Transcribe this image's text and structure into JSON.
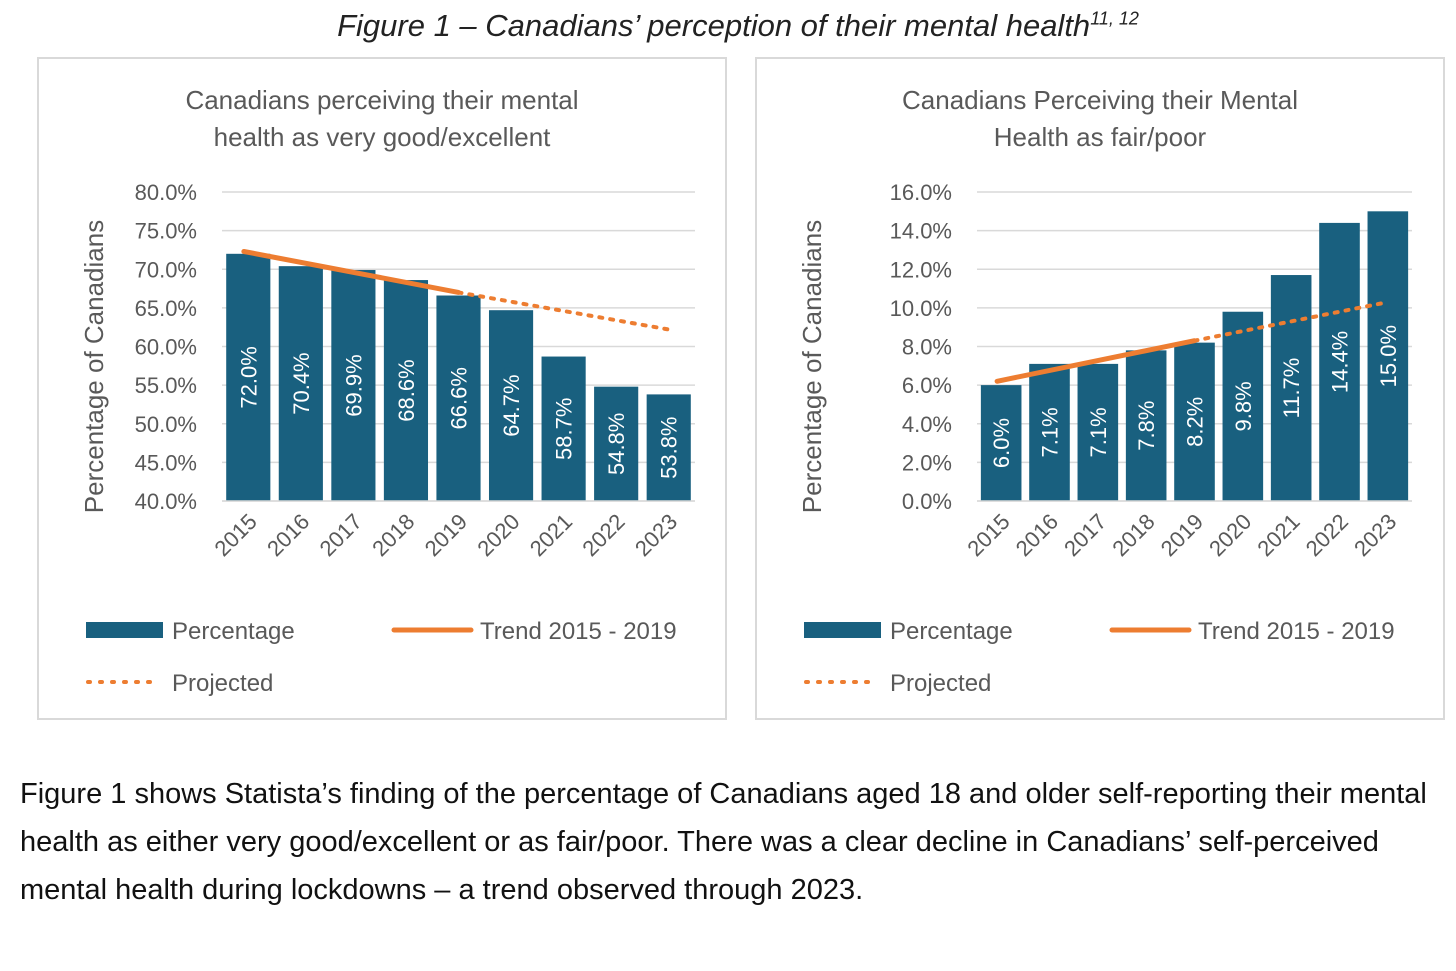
{
  "figure_title": "Figure 1 – Canadians’ perception of their mental health",
  "figure_title_sup": "11, 12",
  "chart_data": [
    {
      "type": "bar",
      "title_line1": "Canadians perceiving their mental",
      "title_line2": "health as very good/excellent",
      "ylabel": "Percentage of Canadians",
      "xlabel": "",
      "categories": [
        "2015",
        "2016",
        "2017",
        "2018",
        "2019",
        "2020",
        "2021",
        "2022",
        "2023"
      ],
      "values": [
        72.0,
        70.4,
        69.9,
        68.6,
        66.6,
        64.7,
        58.7,
        54.8,
        53.8
      ],
      "data_labels": [
        "72.0%",
        "70.4%",
        "69.9%",
        "68.6%",
        "66.6%",
        "64.7%",
        "58.7%",
        "54.8%",
        "53.8%"
      ],
      "ylim": [
        40,
        80
      ],
      "yticks": [
        "40.0%",
        "45.0%",
        "50.0%",
        "55.0%",
        "60.0%",
        "65.0%",
        "70.0%",
        "75.0%",
        "80.0%"
      ],
      "ytick_values": [
        40,
        45,
        50,
        55,
        60,
        65,
        70,
        75,
        80
      ],
      "trend": {
        "x": [
          "2015",
          "2019"
        ],
        "y": [
          72.3,
          67.0
        ]
      },
      "projected": {
        "x": [
          "2019",
          "2023"
        ],
        "y": [
          67.0,
          62.2
        ]
      },
      "legend": [
        "Percentage",
        "Trend 2015 - 2019",
        "Projected"
      ],
      "grid": true
    },
    {
      "type": "bar",
      "title_line1": "Canadians Perceiving their Mental",
      "title_line2": "Health as fair/poor",
      "ylabel": "Percentage of Canadians",
      "xlabel": "",
      "categories": [
        "2015",
        "2016",
        "2017",
        "2018",
        "2019",
        "2020",
        "2021",
        "2022",
        "2023"
      ],
      "values": [
        6.0,
        7.1,
        7.1,
        7.8,
        8.2,
        9.8,
        11.7,
        14.4,
        15.0
      ],
      "data_labels": [
        "6.0%",
        "7.1%",
        "7.1%",
        "7.8%",
        "8.2%",
        "9.8%",
        "11.7%",
        "14.4%",
        "15.0%"
      ],
      "ylim": [
        0,
        16
      ],
      "yticks": [
        "0.0%",
        "2.0%",
        "4.0%",
        "6.0%",
        "8.0%",
        "10.0%",
        "12.0%",
        "14.0%",
        "16.0%"
      ],
      "ytick_values": [
        0,
        2,
        4,
        6,
        8,
        10,
        12,
        14,
        16
      ],
      "trend": {
        "x": [
          "2015",
          "2019"
        ],
        "y": [
          6.2,
          8.3
        ]
      },
      "projected": {
        "x": [
          "2019",
          "2023"
        ],
        "y": [
          8.3,
          10.3
        ]
      },
      "legend": [
        "Percentage",
        "Trend 2015 - 2019",
        "Projected"
      ],
      "grid": true
    }
  ],
  "colors": {
    "bar": "#19607f",
    "trend": "#ed7d31",
    "grid": "#d9d9d9",
    "text": "#595959"
  },
  "caption": "Figure 1 shows Statista’s finding of the percentage of Canadians aged 18 and older self-reporting their mental health as either very good/excellent or as fair/poor. There was a clear decline in Canadians’ self-perceived mental health during lockdowns – a trend observed through 2023."
}
